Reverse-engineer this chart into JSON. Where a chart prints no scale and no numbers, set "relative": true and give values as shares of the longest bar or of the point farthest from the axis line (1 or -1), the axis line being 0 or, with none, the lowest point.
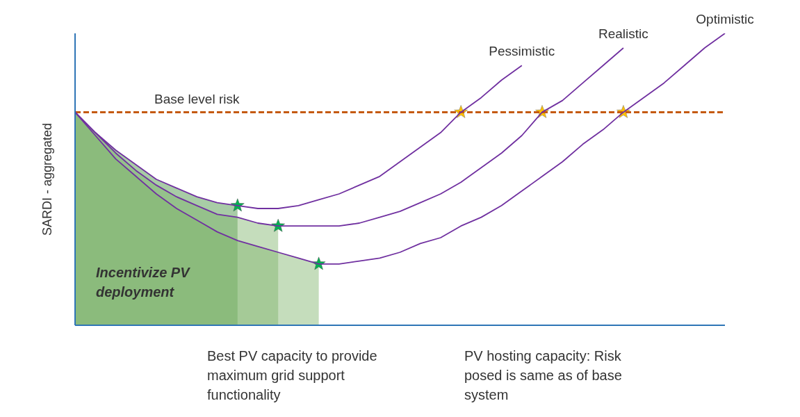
{
  "chart_data": {
    "type": "line",
    "relative": true,
    "ylabel": "SARDI - aggregated",
    "legend": false,
    "grid": false,
    "marker": "none",
    "line_style": "solid",
    "categories": [
      null,
      null,
      null,
      null,
      null,
      null,
      null,
      null,
      null,
      null,
      null,
      null,
      null,
      null,
      null,
      null,
      null,
      null,
      null,
      null,
      null,
      null,
      null,
      null,
      null,
      null,
      null,
      null,
      null,
      null,
      null,
      null,
      null
    ],
    "series": [
      {
        "name": "Pessimistic",
        "color": "#7030a0",
        "values": [
          0.73,
          0.66,
          0.6,
          0.55,
          0.5,
          0.47,
          0.44,
          0.42,
          0.41,
          0.4,
          0.4,
          0.41,
          0.43,
          0.45,
          0.48,
          0.51,
          0.56,
          0.61,
          0.66,
          0.73,
          0.78,
          0.84,
          0.89,
          null,
          null,
          null,
          null,
          null,
          null,
          null,
          null,
          null,
          null
        ]
      },
      {
        "name": "Realistic",
        "color": "#7030a0",
        "values": [
          0.73,
          0.66,
          0.59,
          0.53,
          0.48,
          0.44,
          0.41,
          0.38,
          0.37,
          0.35,
          0.34,
          0.34,
          0.34,
          0.34,
          0.35,
          0.37,
          0.39,
          0.42,
          0.45,
          0.49,
          0.54,
          0.59,
          0.65,
          0.73,
          0.77,
          0.83,
          0.89,
          0.95,
          null,
          null,
          null,
          null,
          null
        ]
      },
      {
        "name": "Optimistic",
        "color": "#7030a0",
        "values": [
          0.73,
          0.65,
          0.57,
          0.51,
          0.45,
          0.4,
          0.36,
          0.32,
          0.29,
          0.27,
          0.25,
          0.23,
          0.21,
          0.21,
          0.22,
          0.23,
          0.25,
          0.28,
          0.3,
          0.34,
          0.37,
          0.41,
          0.46,
          0.51,
          0.56,
          0.62,
          0.67,
          0.73,
          0.78,
          0.83,
          0.89,
          0.95,
          1.0
        ]
      }
    ],
    "ref_lines": [
      {
        "axis": "y",
        "value": 0.73,
        "label": "Base level risk",
        "color": "#c55a11",
        "line_style": "dashed"
      }
    ],
    "annotations": [
      "Incentivize PV deployment",
      "Best PV capacity to provide maximum grid support functionality",
      "PV hosting capacity: Risk posed is same as of base system"
    ]
  }
}
